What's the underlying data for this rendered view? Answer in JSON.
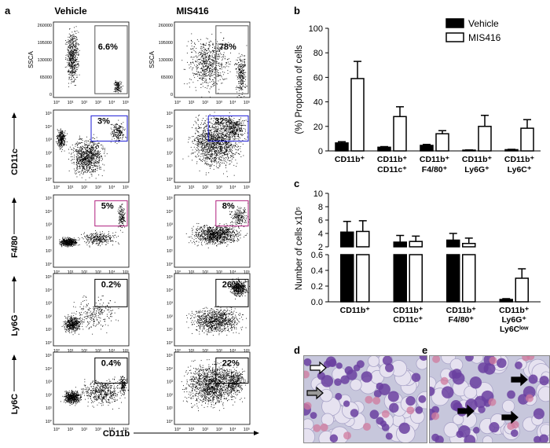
{
  "panels": {
    "a": "a",
    "b": "b",
    "c": "c",
    "d": "d",
    "e": "e"
  },
  "flow": {
    "col_titles": [
      "Vehicle",
      "MIS416"
    ],
    "ssc_label": "SSCA",
    "ssc_ticks": [
      "260000",
      "195000",
      "130000",
      "65000",
      "0"
    ],
    "x_ticks": [
      "10°",
      "10¹",
      "10²",
      "10³",
      "10⁴",
      "10⁵"
    ],
    "y_ticks": [
      "10⁵",
      "10⁴",
      "10³",
      "10²",
      "10¹",
      "10°"
    ],
    "row_markers": [
      "CD11c",
      "F4/80",
      "Ly6G",
      "Ly6C"
    ],
    "x_axis_label": "CD11b",
    "rows": [
      {
        "vehicle": "6.6%",
        "mis": "78%"
      },
      {
        "vehicle": "3%",
        "mis": "32%"
      },
      {
        "vehicle": "5%",
        "mis": "8%"
      },
      {
        "vehicle": "0.2%",
        "mis": "26%"
      },
      {
        "vehicle": "0.4%",
        "mis": "22%"
      }
    ],
    "gate_colors": [
      "#555555",
      "#1a1ad6",
      "#b0207e",
      "#000000",
      "#000000"
    ]
  },
  "chart_data": [
    {
      "type": "bar",
      "panel": "b",
      "categories": [
        "CD11b⁺",
        "CD11b⁺ CD11c⁺",
        "CD11b⁺ F4/80⁺",
        "CD11b⁺ Ly6G⁺",
        "CD11b⁺ Ly6C⁺"
      ],
      "series": [
        {
          "name": "Vehicle",
          "values": [
            6.5,
            3.0,
            4.5,
            0.6,
            1.0
          ],
          "errors": [
            1.0,
            0.5,
            0.8,
            0.2,
            0.3
          ],
          "color": "#000000"
        },
        {
          "name": "MIS416",
          "values": [
            59,
            28,
            14,
            20,
            18.5
          ],
          "errors": [
            14,
            8,
            2.5,
            9,
            7
          ],
          "color": "#ffffff"
        }
      ],
      "ylabel": "(%) Proportion of cells",
      "ylim": [
        0,
        100
      ],
      "yticks": [
        "0",
        "20",
        "40",
        "60",
        "80",
        "100"
      ],
      "legend_position": "top-right"
    },
    {
      "type": "bar",
      "panel": "c",
      "categories": [
        "CD11b⁺",
        "CD11b⁺ CD11c⁺",
        "CD11b⁺ F4/80⁺",
        "CD11b⁺ Ly6G⁺ Ly6Cˡᵒʷ"
      ],
      "series": [
        {
          "name": "Vehicle",
          "values": [
            4.2,
            2.7,
            3.0,
            0.03
          ],
          "errors": [
            1.6,
            1.0,
            1.0,
            0.01
          ]
        },
        {
          "name": "MIS416",
          "values": [
            4.3,
            2.8,
            2.5,
            0.3
          ],
          "errors": [
            1.6,
            0.8,
            0.8,
            0.12
          ]
        }
      ],
      "ylabel": "Number of cells x10⁵",
      "ylim": [
        0,
        10
      ],
      "axis_break": [
        0.6,
        2
      ],
      "yticks": [
        "0.0",
        "0.2",
        "0.4",
        "0.6",
        "2",
        "4",
        "6",
        "8",
        "10"
      ]
    }
  ],
  "micro": {
    "arrow_color_d": [
      "#ffffff",
      "#9a9a9a"
    ],
    "arrow_color_e": "#000000"
  }
}
